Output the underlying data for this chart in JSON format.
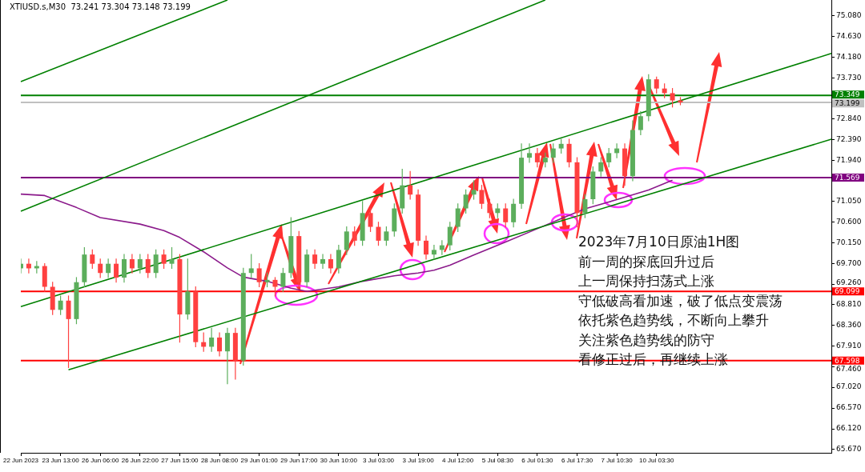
{
  "chart_data": {
    "type": "candlestick",
    "title": "XTIUSD.s,M30  73.241 73.304 73.148 73.199",
    "categories": [
      "22 Jun 2023",
      null,
      null,
      null,
      null,
      "23 Jun 13:00",
      null,
      null,
      null,
      null,
      "26 Jun 06:00",
      null,
      null,
      null,
      null,
      "26 Jun 22:00",
      null,
      null,
      null,
      null,
      "27 Jun 15:00",
      null,
      null,
      null,
      null,
      "28 Jun 08:00",
      null,
      null,
      null,
      null,
      "29 Jun 01:00",
      null,
      null,
      null,
      null,
      "29 Jun 17:00",
      null,
      null,
      null,
      null,
      "30 Jun 10:00",
      null,
      null,
      null,
      null,
      "3 Jul 03:00",
      null,
      null,
      null,
      null,
      "3 Jul 19:00",
      null,
      null,
      null,
      null,
      "4 Jul 12:00",
      null,
      null,
      null,
      null,
      "5 Jul 08:30",
      null,
      null,
      null,
      null,
      "6 Jul 01:30",
      null,
      null,
      null,
      null,
      "6 Jul 17:30",
      null,
      null,
      null,
      null,
      "7 Jul 10:30",
      null,
      null,
      null,
      null,
      "10 Jul 03:30",
      null,
      null,
      null,
      null,
      null,
      null,
      null,
      null,
      null,
      null,
      null,
      null,
      null,
      null,
      null,
      null,
      null,
      null,
      null,
      null,
      null,
      null
    ],
    "ohlc": [
      [
        69.6,
        69.8,
        69.5,
        69.7
      ],
      [
        69.7,
        69.8,
        69.5,
        69.6
      ],
      [
        69.6,
        69.75,
        69.5,
        69.65
      ],
      [
        69.65,
        69.7,
        69.1,
        69.2
      ],
      [
        69.2,
        69.3,
        68.6,
        68.7
      ],
      [
        68.7,
        69.0,
        68.6,
        68.9
      ],
      [
        68.9,
        69.0,
        67.45,
        68.5
      ],
      [
        68.5,
        69.4,
        68.4,
        69.3
      ],
      [
        69.3,
        70.05,
        69.2,
        69.9
      ],
      [
        69.9,
        70.0,
        69.6,
        69.7
      ],
      [
        69.7,
        69.8,
        69.4,
        69.5
      ],
      [
        69.5,
        69.8,
        69.4,
        69.7
      ],
      [
        69.7,
        69.8,
        69.3,
        69.4
      ],
      [
        69.4,
        69.9,
        69.3,
        69.8
      ],
      [
        69.8,
        69.9,
        69.5,
        69.6
      ],
      [
        69.6,
        69.9,
        69.5,
        69.8
      ],
      [
        69.8,
        69.9,
        69.4,
        69.5
      ],
      [
        69.5,
        70.0,
        69.4,
        69.9
      ],
      [
        69.9,
        70.0,
        69.6,
        69.7
      ],
      [
        69.7,
        70.05,
        69.6,
        69.8
      ],
      [
        69.8,
        69.9,
        68.0,
        68.6
      ],
      [
        68.6,
        69.8,
        68.5,
        69.1
      ],
      [
        69.1,
        69.2,
        67.9,
        68.0
      ],
      [
        68.0,
        68.2,
        67.8,
        67.9
      ],
      [
        67.9,
        68.3,
        67.8,
        68.1
      ],
      [
        68.1,
        68.2,
        67.7,
        67.8
      ],
      [
        67.8,
        68.3,
        67.1,
        68.2
      ],
      [
        68.2,
        68.3,
        67.2,
        67.6
      ],
      [
        67.6,
        69.6,
        67.5,
        69.5
      ],
      [
        69.5,
        69.9,
        69.4,
        69.6
      ],
      [
        69.6,
        69.7,
        69.2,
        69.3
      ],
      [
        69.3,
        69.5,
        69.2,
        69.35
      ],
      [
        69.35,
        69.4,
        69.0,
        69.2
      ],
      [
        69.2,
        69.6,
        69.1,
        69.5
      ],
      [
        69.5,
        70.7,
        69.4,
        70.3
      ],
      [
        70.3,
        70.4,
        69.2,
        69.3
      ],
      [
        69.3,
        70.0,
        69.2,
        69.9
      ],
      [
        69.9,
        70.0,
        69.6,
        69.7
      ],
      [
        69.7,
        69.9,
        69.6,
        69.8
      ],
      [
        69.8,
        69.9,
        69.5,
        69.6
      ],
      [
        69.6,
        70.1,
        69.5,
        70.0
      ],
      [
        70.0,
        70.5,
        69.9,
        70.4
      ],
      [
        70.4,
        70.5,
        70.1,
        70.2
      ],
      [
        70.2,
        71.05,
        70.1,
        70.8
      ],
      [
        70.8,
        70.9,
        70.4,
        70.5
      ],
      [
        70.5,
        70.6,
        70.1,
        70.2
      ],
      [
        70.2,
        70.5,
        70.1,
        70.4
      ],
      [
        70.4,
        71.0,
        70.3,
        70.9
      ],
      [
        70.9,
        71.75,
        70.8,
        71.4
      ],
      [
        71.4,
        71.7,
        71.1,
        71.2
      ],
      [
        71.2,
        71.3,
        70.1,
        70.2
      ],
      [
        70.2,
        70.3,
        69.8,
        69.9
      ],
      [
        69.9,
        70.1,
        69.8,
        70.0
      ],
      [
        70.0,
        70.2,
        69.9,
        70.1
      ],
      [
        70.1,
        70.6,
        70.0,
        70.5
      ],
      [
        70.5,
        71.0,
        70.4,
        70.9
      ],
      [
        70.9,
        71.3,
        70.8,
        71.2
      ],
      [
        71.2,
        71.5,
        71.1,
        71.3
      ],
      [
        71.3,
        71.4,
        70.9,
        71.0
      ],
      [
        71.0,
        71.1,
        70.7,
        70.8
      ],
      [
        70.8,
        71.0,
        70.7,
        70.9
      ],
      [
        70.9,
        71.0,
        70.5,
        70.6
      ],
      [
        70.6,
        71.1,
        70.5,
        71.0
      ],
      [
        71.0,
        72.3,
        70.9,
        72.0
      ],
      [
        72.0,
        72.3,
        71.9,
        72.1
      ],
      [
        72.1,
        72.2,
        71.8,
        71.9
      ],
      [
        71.9,
        72.1,
        71.8,
        72.0
      ],
      [
        72.0,
        72.3,
        71.9,
        72.2
      ],
      [
        72.2,
        72.4,
        72.1,
        72.3
      ],
      [
        72.3,
        72.4,
        71.8,
        71.9
      ],
      [
        71.9,
        72.0,
        70.5,
        70.8
      ],
      [
        70.8,
        71.2,
        70.7,
        71.1
      ],
      [
        71.1,
        71.8,
        71.0,
        71.7
      ],
      [
        71.7,
        72.0,
        71.6,
        71.9
      ],
      [
        71.9,
        72.2,
        71.8,
        72.1
      ],
      [
        72.1,
        72.3,
        72.0,
        72.2
      ],
      [
        72.2,
        72.3,
        71.4,
        71.6
      ],
      [
        71.6,
        72.8,
        71.5,
        72.6
      ],
      [
        72.6,
        73.0,
        72.5,
        72.9
      ],
      [
        72.9,
        73.8,
        72.8,
        73.7
      ],
      [
        73.7,
        73.75,
        73.4,
        73.5
      ],
      [
        73.5,
        73.6,
        73.3,
        73.4
      ],
      [
        73.4,
        73.5,
        73.1,
        73.241
      ],
      [
        73.241,
        73.304,
        73.148,
        73.199
      ],
      null,
      null,
      null,
      null,
      null,
      null,
      null,
      null,
      null,
      null,
      null,
      null,
      null,
      null,
      null,
      null,
      null,
      null,
      null
    ],
    "colors": [
      "#5cae5c",
      "#ff4040",
      "#5cae5c",
      "#ff4040",
      "#ff4040",
      "#5cae5c",
      "#ff4040",
      "#5cae5c",
      "#5cae5c",
      "#ff4040",
      "#ff4040",
      "#5cae5c",
      "#ff4040",
      "#5cae5c",
      "#ff4040",
      "#5cae5c",
      "#ff4040",
      "#5cae5c",
      "#ff4040",
      "#5cae5c",
      "#ff4040",
      "#5cae5c",
      "#ff4040",
      "#ff4040",
      "#5cae5c",
      "#ff4040",
      "#5cae5c",
      "#ff4040",
      "#5cae5c",
      "#5cae5c",
      "#ff4040",
      "#5cae5c",
      "#ff4040",
      "#5cae5c",
      "#5cae5c",
      "#ff4040",
      "#5cae5c",
      "#ff4040",
      "#5cae5c",
      "#ff4040",
      "#5cae5c",
      "#5cae5c",
      "#ff4040",
      "#5cae5c",
      "#ff4040",
      "#ff4040",
      "#5cae5c",
      "#5cae5c",
      "#5cae5c",
      "#ff4040",
      "#ff4040",
      "#ff4040",
      "#5cae5c",
      "#5cae5c",
      "#5cae5c",
      "#5cae5c",
      "#5cae5c",
      "#5cae5c",
      "#ff4040",
      "#ff4040",
      "#5cae5c",
      "#ff4040",
      "#5cae5c",
      "#5cae5c",
      "#5cae5c",
      "#ff4040",
      "#5cae5c",
      "#5cae5c",
      "#5cae5c",
      "#ff4040",
      "#ff4040",
      "#5cae5c",
      "#5cae5c",
      "#5cae5c",
      "#5cae5c",
      "#5cae5c",
      "#ff4040",
      "#5cae5c",
      "#5cae5c",
      "#5cae5c",
      "#ff4040",
      "#ff4040",
      "#ff4040",
      "#ff4040",
      null,
      null,
      null,
      null,
      null,
      null,
      null,
      null,
      null,
      null,
      null,
      null,
      null,
      null,
      null,
      null,
      null,
      null,
      null
    ],
    "series": [
      {
        "type": "line",
        "color": "#008000",
        "values": [
          73.65,
          null,
          null,
          null,
          null,
          null,
          null,
          null,
          null,
          null,
          null,
          null,
          null,
          null,
          null,
          null,
          null,
          null,
          null,
          null,
          null,
          null,
          null,
          null,
          null,
          null,
          75.42,
          null,
          null,
          null,
          null,
          null,
          null,
          null,
          null,
          null,
          null,
          null,
          null,
          null,
          null,
          null,
          null,
          null,
          null,
          null,
          null,
          null,
          null,
          null,
          null,
          null,
          null,
          null,
          null,
          null,
          null,
          null,
          null,
          null,
          null,
          null,
          null,
          null,
          null,
          null,
          null,
          null,
          null,
          null,
          null,
          null,
          null,
          null,
          null,
          null,
          null,
          null,
          null,
          null,
          null,
          null,
          null,
          null,
          null,
          null,
          null,
          null,
          null,
          null,
          null,
          null,
          null,
          null,
          null,
          null,
          null,
          null,
          null,
          null,
          null,
          null,
          null
        ]
      },
      {
        "type": "line",
        "color": "#008000",
        "values": [
          70.84,
          null,
          null,
          null,
          null,
          null,
          null,
          null,
          null,
          null,
          null,
          null,
          null,
          null,
          null,
          null,
          null,
          null,
          null,
          null,
          null,
          null,
          null,
          null,
          null,
          null,
          null,
          null,
          null,
          null,
          null,
          null,
          null,
          null,
          null,
          null,
          null,
          null,
          null,
          null,
          null,
          null,
          null,
          null,
          null,
          null,
          null,
          null,
          null,
          null,
          null,
          null,
          null,
          null,
          null,
          null,
          null,
          null,
          null,
          null,
          null,
          null,
          null,
          null,
          null,
          null,
          75.42,
          null,
          null,
          null,
          null,
          null,
          null,
          null,
          null,
          null,
          null,
          null,
          null,
          null,
          null,
          null,
          null,
          null,
          null,
          null,
          null,
          null,
          null,
          null,
          null,
          null,
          null,
          null,
          null,
          null,
          null,
          null,
          null,
          null,
          null,
          null,
          null
        ]
      },
      {
        "type": "line",
        "color": "#008000",
        "values": [
          68.77,
          null,
          null,
          null,
          null,
          null,
          null,
          null,
          null,
          null,
          null,
          null,
          null,
          null,
          null,
          null,
          null,
          null,
          null,
          null,
          null,
          null,
          null,
          null,
          null,
          null,
          null,
          null,
          null,
          null,
          null,
          null,
          null,
          null,
          null,
          null,
          null,
          null,
          null,
          null,
          null,
          null,
          null,
          null,
          null,
          null,
          null,
          null,
          null,
          null,
          null,
          null,
          null,
          null,
          null,
          null,
          null,
          null,
          null,
          null,
          null,
          null,
          null,
          null,
          null,
          null,
          null,
          null,
          null,
          null,
          null,
          null,
          null,
          null,
          null,
          null,
          null,
          null,
          null,
          null,
          null,
          null,
          null,
          null,
          null,
          null,
          null,
          null,
          null,
          null,
          null,
          null,
          null,
          null,
          null,
          null,
          null,
          null,
          null,
          null,
          null,
          null,
          74.26
        ]
      },
      {
        "type": "line",
        "color": "#008000",
        "values": [
          null,
          null,
          null,
          null,
          null,
          null,
          67.4,
          null,
          null,
          null,
          null,
          null,
          null,
          null,
          null,
          null,
          null,
          null,
          null,
          null,
          null,
          null,
          null,
          null,
          null,
          null,
          null,
          null,
          null,
          null,
          null,
          null,
          null,
          null,
          null,
          null,
          null,
          null,
          null,
          null,
          null,
          null,
          null,
          null,
          null,
          null,
          null,
          null,
          null,
          null,
          null,
          null,
          null,
          null,
          null,
          null,
          null,
          null,
          null,
          null,
          null,
          null,
          null,
          null,
          null,
          null,
          null,
          null,
          null,
          null,
          null,
          null,
          null,
          null,
          null,
          null,
          null,
          null,
          null,
          null,
          null,
          null,
          null,
          null,
          null,
          null,
          null,
          null,
          null,
          null,
          null,
          null,
          null,
          null,
          null,
          null,
          null,
          null,
          null,
          null,
          null,
          null,
          72.4
        ]
      },
      {
        "type": "line",
        "color": "#8b1a8b",
        "values": [
          71.21,
          null,
          null,
          71.18,
          null,
          null,
          null,
          70.92,
          null,
          null,
          70.7,
          null,
          null,
          null,
          null,
          70.56,
          null,
          null,
          70.42,
          null,
          70.27,
          null,
          null,
          69.96,
          null,
          null,
          69.61,
          null,
          69.41,
          null,
          null,
          69.32,
          null,
          null,
          69.17,
          null,
          69.1,
          null,
          null,
          null,
          69.2,
          null,
          null,
          69.32,
          null,
          null,
          null,
          69.44,
          null,
          null,
          69.5,
          null,
          69.56,
          null,
          69.67,
          null,
          null,
          69.89,
          null,
          null,
          null,
          70.17,
          null,
          null,
          null,
          70.46,
          null,
          null,
          70.68,
          null,
          null,
          70.89,
          null,
          null,
          null,
          71.09,
          null,
          null,
          null,
          71.3,
          null,
          null,
          71.51,
          null,
          null,
          null,
          null,
          null,
          null,
          null,
          null,
          null,
          null,
          null,
          null,
          null,
          null,
          null,
          null,
          null,
          null,
          null,
          null
        ]
      }
    ],
    "ylim": [
      65.6,
      75.42
    ],
    "yticks": [
      {
        "value": 65.67,
        "label": "65.670"
      },
      {
        "value": 66.12,
        "label": "66.120"
      },
      {
        "value": 66.57,
        "label": "66.570"
      },
      {
        "value": 67.02,
        "label": "67.020"
      },
      {
        "value": 67.46,
        "label": "67.460"
      },
      {
        "value": 67.91,
        "label": "67.910"
      },
      {
        "value": 68.36,
        "label": "68.360"
      },
      {
        "value": 68.81,
        "label": "68.810"
      },
      {
        "value": 69.26,
        "label": "69.260"
      },
      {
        "value": 69.7,
        "label": "69.700"
      },
      {
        "value": 70.15,
        "label": "70.150"
      },
      {
        "value": 70.6,
        "label": "70.600"
      },
      {
        "value": 71.05,
        "label": "71.050"
      },
      {
        "value": 71.94,
        "label": "71.940"
      },
      {
        "value": 72.39,
        "label": "72.390"
      },
      {
        "value": 72.84,
        "label": "72.840"
      },
      {
        "value": 73.73,
        "label": "73.730"
      },
      {
        "value": 74.18,
        "label": "74.180"
      },
      {
        "value": 74.63,
        "label": "74.630"
      },
      {
        "value": 75.08,
        "label": "75.080"
      }
    ],
    "ref_lines": [
      {
        "axis": "y",
        "value": 73.349,
        "label": "73.349",
        "color": "#008000"
      },
      {
        "axis": "y",
        "value": 73.199,
        "label": "73.199",
        "color": "#c0c0c0"
      },
      {
        "axis": "y",
        "value": 71.569,
        "label": "71.569",
        "color": "#800080"
      },
      {
        "axis": "y",
        "value": 69.099,
        "label": "69.099",
        "color": "#ff0000"
      },
      {
        "axis": "y",
        "value": 67.598,
        "label": "67.598",
        "color": "#ff0000"
      }
    ],
    "annotations": [
      "2023年7月10日原油1H图",
      "前一周的探底回升过后",
      "上一周保持扫荡式上涨",
      "守低破高看加速，破了低点变震荡",
      "依托紫色趋势线，不断向上攀升",
      "关注紫色趋势线的防守",
      "看修正过后，再继续上涨"
    ],
    "grid": false,
    "legend": false
  }
}
